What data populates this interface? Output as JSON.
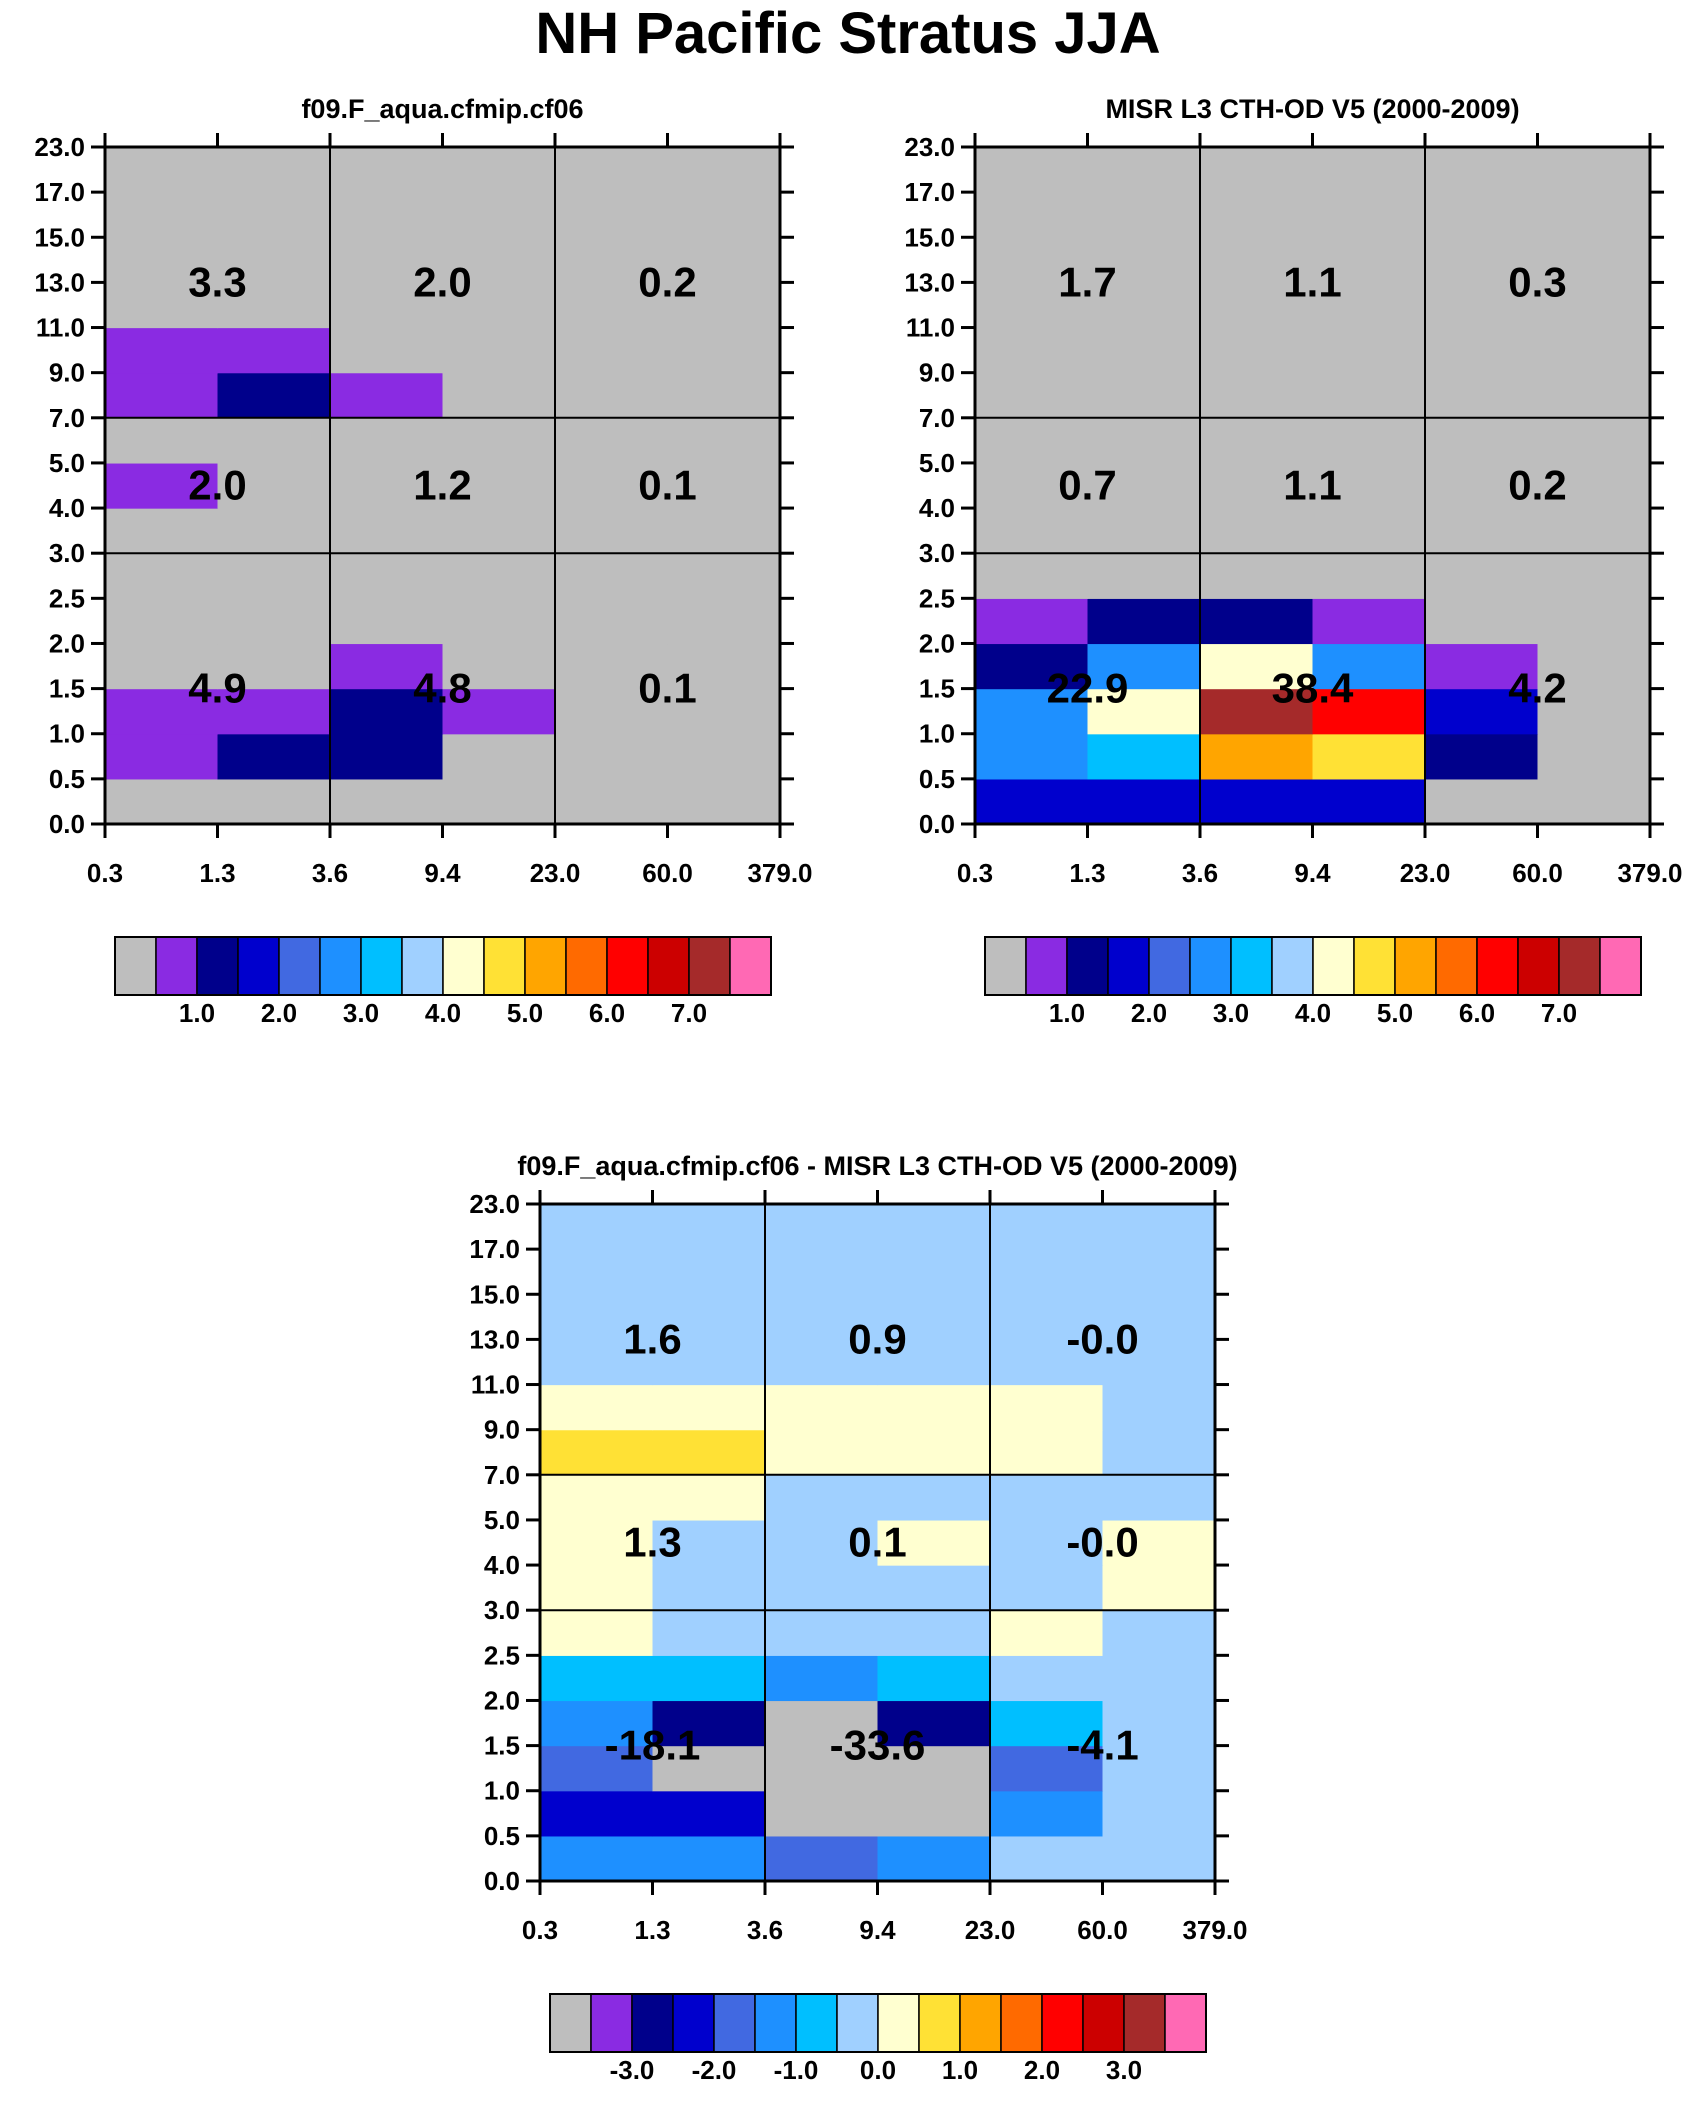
{
  "main_title": "NH Pacific Stratus JJA",
  "chart_data": [
    {
      "type": "heatmap",
      "name": "model",
      "title": "f09.F_aqua.cfmip.cf06",
      "x_ticks": [
        "0.3",
        "1.3",
        "3.6",
        "9.4",
        "23.0",
        "60.0",
        "379.0"
      ],
      "y_ticks": [
        "0.0",
        "0.5",
        "1.0",
        "1.5",
        "2.0",
        "2.5",
        "3.0",
        "4.0",
        "5.0",
        "7.0",
        "9.0",
        "11.0",
        "13.0",
        "15.0",
        "17.0",
        "23.0"
      ],
      "grid": [
        [
          0,
          0,
          0,
          0,
          0,
          0
        ],
        [
          1,
          2,
          2,
          0,
          0,
          0
        ],
        [
          1,
          1,
          2,
          1,
          0,
          0
        ],
        [
          0,
          0,
          1,
          0,
          0,
          0
        ],
        [
          0,
          0,
          0,
          0,
          0,
          0
        ],
        [
          0,
          0,
          0,
          0,
          0,
          0
        ],
        [
          0,
          0,
          0,
          0,
          0,
          0
        ],
        [
          1,
          0,
          0,
          0,
          0,
          0
        ],
        [
          0,
          0,
          0,
          0,
          0,
          0
        ],
        [
          1,
          2,
          1,
          0,
          0,
          0
        ],
        [
          1,
          1,
          0,
          0,
          0,
          0
        ],
        [
          0,
          0,
          0,
          0,
          0,
          0
        ],
        [
          0,
          0,
          0,
          0,
          0,
          0
        ],
        [
          0,
          0,
          0,
          0,
          0,
          0
        ],
        [
          0,
          0,
          0,
          0,
          0,
          0
        ]
      ],
      "summaries": [
        [
          "4.9",
          "4.8",
          "0.1"
        ],
        [
          "2.0",
          "1.2",
          "0.1"
        ],
        [
          "3.3",
          "2.0",
          "0.2"
        ]
      ],
      "colorbar": {
        "labels": [
          "1.0",
          "2.0",
          "3.0",
          "4.0",
          "5.0",
          "6.0",
          "7.0"
        ],
        "label_start_box": 1
      }
    },
    {
      "type": "heatmap",
      "name": "obs",
      "title": "MISR L3 CTH-OD V5 (2000-2009)",
      "x_ticks": [
        "0.3",
        "1.3",
        "3.6",
        "9.4",
        "23.0",
        "60.0",
        "379.0"
      ],
      "y_ticks": [
        "0.0",
        "0.5",
        "1.0",
        "1.5",
        "2.0",
        "2.5",
        "3.0",
        "4.0",
        "5.0",
        "7.0",
        "9.0",
        "11.0",
        "13.0",
        "15.0",
        "17.0",
        "23.0"
      ],
      "grid": [
        [
          3,
          3,
          3,
          3,
          0,
          0
        ],
        [
          5,
          6,
          10,
          9,
          2,
          0
        ],
        [
          5,
          8,
          14,
          12,
          3,
          0
        ],
        [
          2,
          5,
          8,
          5,
          1,
          0
        ],
        [
          1,
          2,
          2,
          1,
          0,
          0
        ],
        [
          0,
          0,
          0,
          0,
          0,
          0
        ],
        [
          0,
          0,
          0,
          0,
          0,
          0
        ],
        [
          0,
          0,
          0,
          0,
          0,
          0
        ],
        [
          0,
          0,
          0,
          0,
          0,
          0
        ],
        [
          0,
          0,
          0,
          0,
          0,
          0
        ],
        [
          0,
          0,
          0,
          0,
          0,
          0
        ],
        [
          0,
          0,
          0,
          0,
          0,
          0
        ],
        [
          0,
          0,
          0,
          0,
          0,
          0
        ],
        [
          0,
          0,
          0,
          0,
          0,
          0
        ],
        [
          0,
          0,
          0,
          0,
          0,
          0
        ]
      ],
      "summaries": [
        [
          "22.9",
          "38.4",
          "4.2"
        ],
        [
          "0.7",
          "1.1",
          "0.2"
        ],
        [
          "1.7",
          "1.1",
          "0.3"
        ]
      ],
      "colorbar": {
        "labels": [
          "1.0",
          "2.0",
          "3.0",
          "4.0",
          "5.0",
          "6.0",
          "7.0"
        ],
        "label_start_box": 1
      }
    },
    {
      "type": "heatmap",
      "name": "diff",
      "title": "f09.F_aqua.cfmip.cf06 - MISR L3 CTH-OD V5 (2000-2009)",
      "x_ticks": [
        "0.3",
        "1.3",
        "3.6",
        "9.4",
        "23.0",
        "60.0",
        "379.0"
      ],
      "y_ticks": [
        "0.0",
        "0.5",
        "1.0",
        "1.5",
        "2.0",
        "2.5",
        "3.0",
        "4.0",
        "5.0",
        "7.0",
        "9.0",
        "11.0",
        "13.0",
        "15.0",
        "17.0",
        "23.0"
      ],
      "grid": [
        [
          5,
          5,
          4,
          5,
          7,
          7
        ],
        [
          3,
          3,
          0,
          0,
          5,
          7
        ],
        [
          4,
          0,
          0,
          0,
          4,
          7
        ],
        [
          5,
          2,
          0,
          2,
          6,
          7
        ],
        [
          6,
          6,
          5,
          6,
          7,
          7
        ],
        [
          8,
          7,
          7,
          7,
          8,
          7
        ],
        [
          8,
          7,
          7,
          7,
          7,
          8
        ],
        [
          8,
          7,
          7,
          8,
          7,
          8
        ],
        [
          8,
          8,
          7,
          7,
          7,
          7
        ],
        [
          9,
          9,
          8,
          8,
          8,
          7
        ],
        [
          8,
          8,
          8,
          8,
          8,
          7
        ],
        [
          7,
          7,
          7,
          7,
          7,
          7
        ],
        [
          7,
          7,
          7,
          7,
          7,
          7
        ],
        [
          7,
          7,
          7,
          7,
          7,
          7
        ],
        [
          7,
          7,
          7,
          7,
          7,
          7
        ]
      ],
      "summaries": [
        [
          "-18.1",
          "-33.6",
          "-4.1"
        ],
        [
          "1.3",
          "0.1",
          "-0.0"
        ],
        [
          "1.6",
          "0.9",
          "-0.0"
        ]
      ],
      "colorbar": {
        "labels": [
          "-3.0",
          "-2.0",
          "-1.0",
          "0.0",
          "1.0",
          "2.0",
          "3.0"
        ],
        "label_start_box": 1
      }
    }
  ],
  "palette": [
    "#bebebe",
    "#8a2be2",
    "#00008b",
    "#0000cd",
    "#4169e1",
    "#1e90ff",
    "#00bfff",
    "#a0d0ff",
    "#ffffd0",
    "#ffe135",
    "#ffa500",
    "#ff6a00",
    "#ff0000",
    "#cc0000",
    "#a52a2a",
    "#ff69b4"
  ]
}
